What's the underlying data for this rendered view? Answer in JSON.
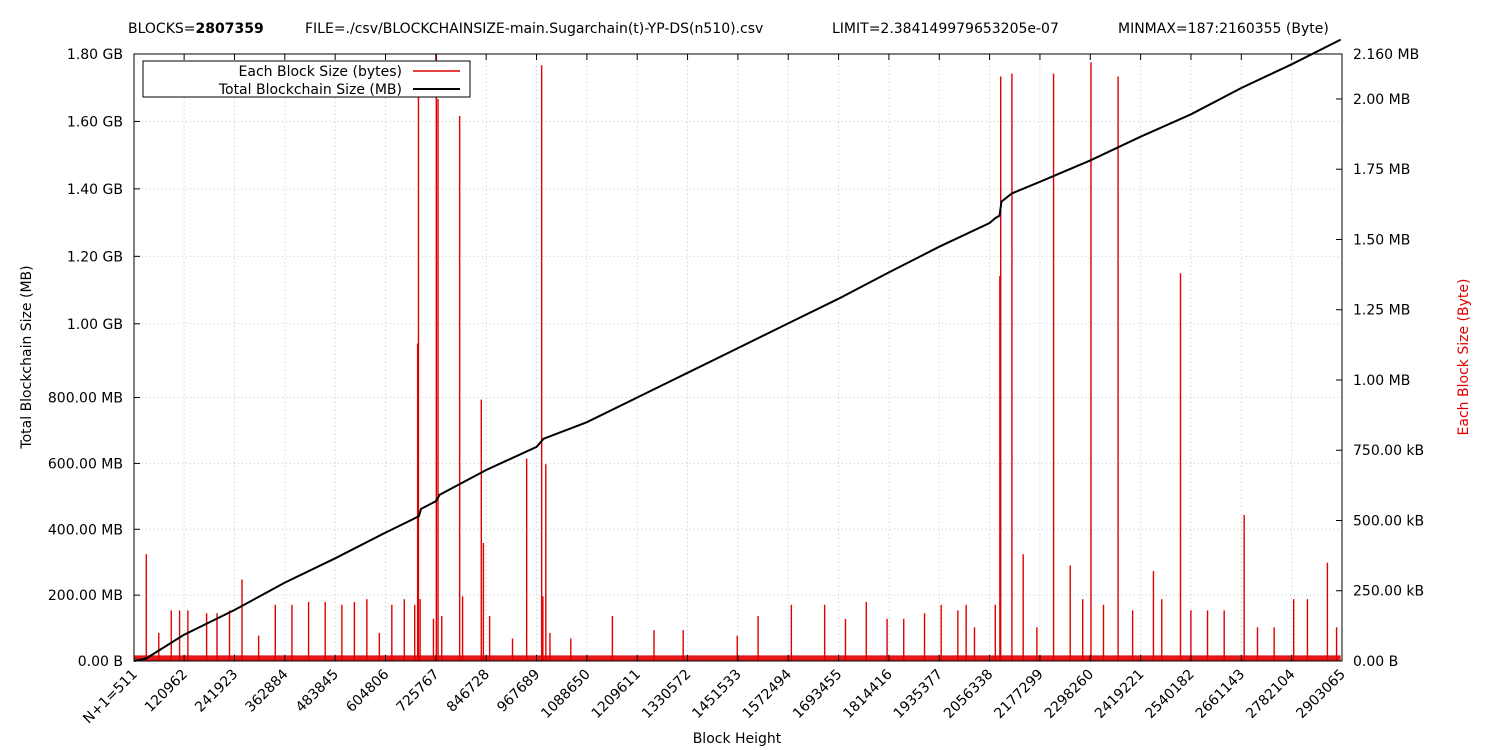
{
  "header": {
    "blocks_label": "BLOCKS=",
    "blocks_value": "2807359",
    "file": "FILE=./csv/BLOCKCHAINSIZE-main.Sugarchain(t)-YP-DS(n510).csv",
    "limit": "LIMIT=2.384149979653205e-07",
    "minmax": "MINMAX=187:2160355 (Byte)"
  },
  "chart_data": {
    "type": "line",
    "xlabel": "Block Height",
    "ylabel": "Total Blockchain Size (MB)",
    "y2label": "Each Block Size (Byte)",
    "xlim": [
      511,
      2903065
    ],
    "ylim_mb": [
      0,
      1843.2
    ],
    "y2lim_mb": [
      0,
      2.16
    ],
    "grid": true,
    "legend_position": "top-left",
    "x_ticks": [
      {
        "value": 511,
        "label": "N+1=511"
      },
      {
        "value": 120962,
        "label": "120962"
      },
      {
        "value": 241923,
        "label": "241923"
      },
      {
        "value": 362884,
        "label": "362884"
      },
      {
        "value": 483845,
        "label": "483845"
      },
      {
        "value": 604806,
        "label": "604806"
      },
      {
        "value": 725767,
        "label": "725767"
      },
      {
        "value": 846728,
        "label": "846728"
      },
      {
        "value": 967689,
        "label": "967689"
      },
      {
        "value": 1088650,
        "label": "1088650"
      },
      {
        "value": 1209611,
        "label": "1209611"
      },
      {
        "value": 1330572,
        "label": "1330572"
      },
      {
        "value": 1451533,
        "label": "1451533"
      },
      {
        "value": 1572494,
        "label": "1572494"
      },
      {
        "value": 1693455,
        "label": "1693455"
      },
      {
        "value": 1814416,
        "label": "1814416"
      },
      {
        "value": 1935377,
        "label": "1935377"
      },
      {
        "value": 2056338,
        "label": "2056338"
      },
      {
        "value": 2177299,
        "label": "2177299"
      },
      {
        "value": 2298260,
        "label": "2298260"
      },
      {
        "value": 2419221,
        "label": "2419221"
      },
      {
        "value": 2540182,
        "label": "2540182"
      },
      {
        "value": 2661143,
        "label": "2661143"
      },
      {
        "value": 2782104,
        "label": "2782104"
      },
      {
        "value": 2903065,
        "label": "2903065"
      }
    ],
    "y_ticks": [
      {
        "value": 0,
        "label": "0.00  B"
      },
      {
        "value": 200,
        "label": "200.00 MB"
      },
      {
        "value": 400,
        "label": "400.00 MB"
      },
      {
        "value": 600,
        "label": "600.00 MB"
      },
      {
        "value": 800,
        "label": "800.00 MB"
      },
      {
        "value": 1024,
        "label": "1.00 GB"
      },
      {
        "value": 1228.8,
        "label": "1.20 GB"
      },
      {
        "value": 1433.6,
        "label": "1.40 GB"
      },
      {
        "value": 1638.4,
        "label": "1.60 GB"
      },
      {
        "value": 1843.2,
        "label": "1.80 GB"
      }
    ],
    "y2_ticks": [
      {
        "value": 0,
        "label": "0.00  B"
      },
      {
        "value": 0.25,
        "label": "250.00 kB"
      },
      {
        "value": 0.5,
        "label": "500.00 kB"
      },
      {
        "value": 0.75,
        "label": "750.00 kB"
      },
      {
        "value": 1.0,
        "label": "1.00 MB"
      },
      {
        "value": 1.25,
        "label": "1.25 MB"
      },
      {
        "value": 1.5,
        "label": "1.50 MB"
      },
      {
        "value": 1.75,
        "label": "1.75 MB"
      },
      {
        "value": 2.0,
        "label": "2.00 MB"
      },
      {
        "value": 2.16,
        "label": "2.160 MB"
      }
    ],
    "series": [
      {
        "name": "Each Block Size (bytes)",
        "color": "#e00000",
        "axis": "y2",
        "unit": "MB",
        "baseline": 0.02,
        "spikes": [
          [
            30000,
            0.38
          ],
          [
            60000,
            0.1
          ],
          [
            90000,
            0.18
          ],
          [
            110000,
            0.18
          ],
          [
            130000,
            0.18
          ],
          [
            175000,
            0.17
          ],
          [
            200000,
            0.17
          ],
          [
            230000,
            0.18
          ],
          [
            260000,
            0.29
          ],
          [
            300000,
            0.09
          ],
          [
            340000,
            0.2
          ],
          [
            380000,
            0.2
          ],
          [
            420000,
            0.21
          ],
          [
            460000,
            0.21
          ],
          [
            500000,
            0.2
          ],
          [
            530000,
            0.21
          ],
          [
            560000,
            0.22
          ],
          [
            590000,
            0.1
          ],
          [
            620000,
            0.2
          ],
          [
            650000,
            0.22
          ],
          [
            675000,
            0.2
          ],
          [
            682000,
            1.13
          ],
          [
            684000,
            2.05
          ],
          [
            688000,
            0.22
          ],
          [
            720000,
            0.15
          ],
          [
            727000,
            2.16
          ],
          [
            731000,
            2.0
          ],
          [
            740000,
            0.16
          ],
          [
            783000,
            1.94
          ],
          [
            790000,
            0.23
          ],
          [
            835000,
            0.93
          ],
          [
            840000,
            0.42
          ],
          [
            855000,
            0.16
          ],
          [
            910000,
            0.08
          ],
          [
            944000,
            0.72
          ],
          [
            980000,
            2.12
          ],
          [
            983000,
            0.23
          ],
          [
            990000,
            0.7
          ],
          [
            1000000,
            0.1
          ],
          [
            1050000,
            0.08
          ],
          [
            1150000,
            0.16
          ],
          [
            1250000,
            0.11
          ],
          [
            1320000,
            0.11
          ],
          [
            1450000,
            0.09
          ],
          [
            1500000,
            0.16
          ],
          [
            1580000,
            0.2
          ],
          [
            1660000,
            0.2
          ],
          [
            1710000,
            0.15
          ],
          [
            1760000,
            0.21
          ],
          [
            1810000,
            0.15
          ],
          [
            1850000,
            0.15
          ],
          [
            1900000,
            0.17
          ],
          [
            1940000,
            0.2
          ],
          [
            1980000,
            0.18
          ],
          [
            2000000,
            0.2
          ],
          [
            2020000,
            0.12
          ],
          [
            2070000,
            0.2
          ],
          [
            2081000,
            1.37
          ],
          [
            2083000,
            2.08
          ],
          [
            2110000,
            2.09
          ],
          [
            2137000,
            0.38
          ],
          [
            2170000,
            0.12
          ],
          [
            2210000,
            2.09
          ],
          [
            2250000,
            0.34
          ],
          [
            2280000,
            0.22
          ],
          [
            2300000,
            2.13
          ],
          [
            2330000,
            0.2
          ],
          [
            2365000,
            2.08
          ],
          [
            2400000,
            0.18
          ],
          [
            2450000,
            0.32
          ],
          [
            2470000,
            0.22
          ],
          [
            2515000,
            1.38
          ],
          [
            2540000,
            0.18
          ],
          [
            2580000,
            0.18
          ],
          [
            2620000,
            0.18
          ],
          [
            2668000,
            0.52
          ],
          [
            2700000,
            0.12
          ],
          [
            2740000,
            0.12
          ],
          [
            2787000,
            0.22
          ],
          [
            2820000,
            0.22
          ],
          [
            2868000,
            0.35
          ],
          [
            2890000,
            0.12
          ]
        ]
      },
      {
        "name": "Total Blockchain Size (MB)",
        "color": "#000000",
        "axis": "y",
        "unit": "MB",
        "points": [
          [
            511,
            0
          ],
          [
            30000,
            8
          ],
          [
            120962,
            80
          ],
          [
            241923,
            155
          ],
          [
            362884,
            238
          ],
          [
            483845,
            312
          ],
          [
            604806,
            390
          ],
          [
            670000,
            430
          ],
          [
            685000,
            440
          ],
          [
            690000,
            462
          ],
          [
            725767,
            485
          ],
          [
            735000,
            505
          ],
          [
            846728,
            580
          ],
          [
            967689,
            650
          ],
          [
            985000,
            675
          ],
          [
            1088650,
            725
          ],
          [
            1209611,
            800
          ],
          [
            1330572,
            875
          ],
          [
            1451533,
            950
          ],
          [
            1572494,
            1025
          ],
          [
            1693455,
            1100
          ],
          [
            1814416,
            1180
          ],
          [
            1935377,
            1258
          ],
          [
            2056338,
            1330
          ],
          [
            2070000,
            1345
          ],
          [
            2080000,
            1352
          ],
          [
            2085000,
            1395
          ],
          [
            2110000,
            1420
          ],
          [
            2177299,
            1455
          ],
          [
            2298260,
            1520
          ],
          [
            2419221,
            1592
          ],
          [
            2540182,
            1660
          ],
          [
            2661143,
            1740
          ],
          [
            2782104,
            1812
          ],
          [
            2900000,
            1887
          ]
        ]
      }
    ]
  }
}
